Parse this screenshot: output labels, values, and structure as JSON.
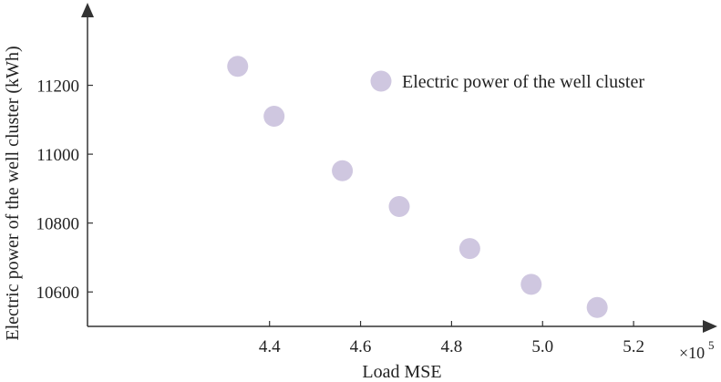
{
  "chart_data": {
    "type": "scatter",
    "xlabel": "Load MSE",
    "ylabel": "Electric power of the well cluster (kWh)",
    "x_multiplier_label": "×10",
    "x_multiplier_exponent": "5",
    "xlim": [
      4.0,
      5.35
    ],
    "ylim": [
      10500,
      11400
    ],
    "x_ticks": [
      4.4,
      4.6,
      4.8,
      5.0,
      5.2
    ],
    "x_tick_labels": [
      "4.4",
      "4.6",
      "4.8",
      "5.0",
      "5.2"
    ],
    "y_ticks": [
      10600,
      10800,
      11000,
      11200
    ],
    "y_tick_labels": [
      "10600",
      "10800",
      "11000",
      "11200"
    ],
    "grid": false,
    "legend_position": "top-right",
    "marker_color": "#cfc7e0",
    "series": [
      {
        "name": "Electric power of the well cluster",
        "points": [
          {
            "x": 4.33,
            "y": 11255
          },
          {
            "x": 4.41,
            "y": 11110
          },
          {
            "x": 4.56,
            "y": 10952
          },
          {
            "x": 4.685,
            "y": 10848
          },
          {
            "x": 4.84,
            "y": 10726
          },
          {
            "x": 4.975,
            "y": 10622
          },
          {
            "x": 5.12,
            "y": 10555
          }
        ]
      }
    ]
  }
}
